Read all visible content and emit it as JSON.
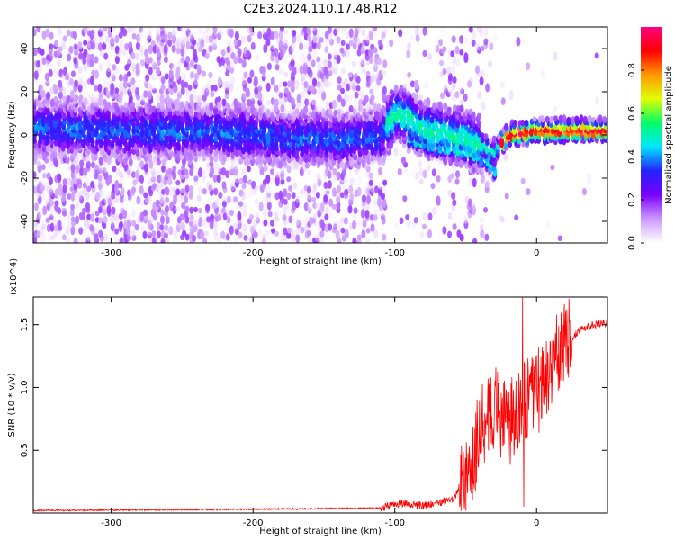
{
  "figure": {
    "title": "C2E3.2024.110.17.48.R12"
  },
  "chart_data": [
    {
      "type": "heatmap",
      "panel": "spectrogram",
      "xlabel": "Height of straight line (km)",
      "ylabel": "Frequency (Hz)",
      "xlim": [
        -355,
        50
      ],
      "ylim": [
        -50,
        50
      ],
      "x_ticks": [
        -300,
        -200,
        -100,
        0
      ],
      "y_ticks": [
        -40,
        -20,
        0,
        20,
        40
      ],
      "colorbar": {
        "label": "Normalized spectral amplitude",
        "range": [
          0,
          1
        ],
        "ticks": [
          "0.0",
          "0.2",
          "0.4",
          "0.6",
          "0.8"
        ],
        "colors": [
          "#ffffff",
          "#cc99ff",
          "#7a00ff",
          "#2222ff",
          "#00e5ff",
          "#00ff66",
          "#e0ff00",
          "#ff9900",
          "#ff0000",
          "#ff0080"
        ]
      },
      "ridge": [
        {
          "x": -355,
          "y": 4
        },
        {
          "x": -300,
          "y": 2
        },
        {
          "x": -230,
          "y": 2
        },
        {
          "x": -180,
          "y": -1
        },
        {
          "x": -140,
          "y": -2
        },
        {
          "x": -110,
          "y": 0
        },
        {
          "x": -100,
          "y": 10
        },
        {
          "x": -90,
          "y": 8
        },
        {
          "x": -80,
          "y": 3
        },
        {
          "x": -60,
          "y": 0
        },
        {
          "x": -40,
          "y": -4
        },
        {
          "x": -30,
          "y": -8
        },
        {
          "x": -20,
          "y": 0
        },
        {
          "x": 0,
          "y": 2
        },
        {
          "x": 50,
          "y": 2
        }
      ],
      "ridge_lower_branch": [
        {
          "x": -90,
          "y": -2
        },
        {
          "x": -70,
          "y": -6
        },
        {
          "x": -50,
          "y": -8
        },
        {
          "x": -35,
          "y": -12
        },
        {
          "x": -30,
          "y": -16
        }
      ]
    },
    {
      "type": "line",
      "panel": "snr",
      "xlabel": "Height of straight line (km)",
      "ylabel": "SNR (10 * v/v)",
      "y_multiplier_label": "(x10^4)",
      "xlim": [
        -355,
        50
      ],
      "ylim": [
        0,
        1.72
      ],
      "x_ticks": [
        -300,
        -200,
        -100,
        0
      ],
      "y_ticks": [
        "0.5",
        "1.0",
        "1.5"
      ],
      "y_tick_values": [
        0.5,
        1.0,
        1.5
      ],
      "series": [
        {
          "color": "#ff0000",
          "trend": [
            {
              "x": -355,
              "y": 0.02
            },
            {
              "x": -200,
              "y": 0.03
            },
            {
              "x": -110,
              "y": 0.04
            },
            {
              "x": -95,
              "y": 0.08
            },
            {
              "x": -80,
              "y": 0.06
            },
            {
              "x": -60,
              "y": 0.1
            },
            {
              "x": -50,
              "y": 0.25
            },
            {
              "x": -45,
              "y": 0.45
            },
            {
              "x": -40,
              "y": 0.65
            },
            {
              "x": -35,
              "y": 0.8
            },
            {
              "x": -30,
              "y": 0.85
            },
            {
              "x": -20,
              "y": 0.7
            },
            {
              "x": -10,
              "y": 0.85
            },
            {
              "x": 0,
              "y": 0.95
            },
            {
              "x": 10,
              "y": 1.15
            },
            {
              "x": 20,
              "y": 1.35
            },
            {
              "x": 30,
              "y": 1.45
            },
            {
              "x": 40,
              "y": 1.5
            },
            {
              "x": 50,
              "y": 1.51
            }
          ],
          "peak": {
            "x": -10,
            "y": 1.72
          },
          "dip": {
            "x": -9,
            "y": 0.05
          }
        }
      ]
    }
  ]
}
